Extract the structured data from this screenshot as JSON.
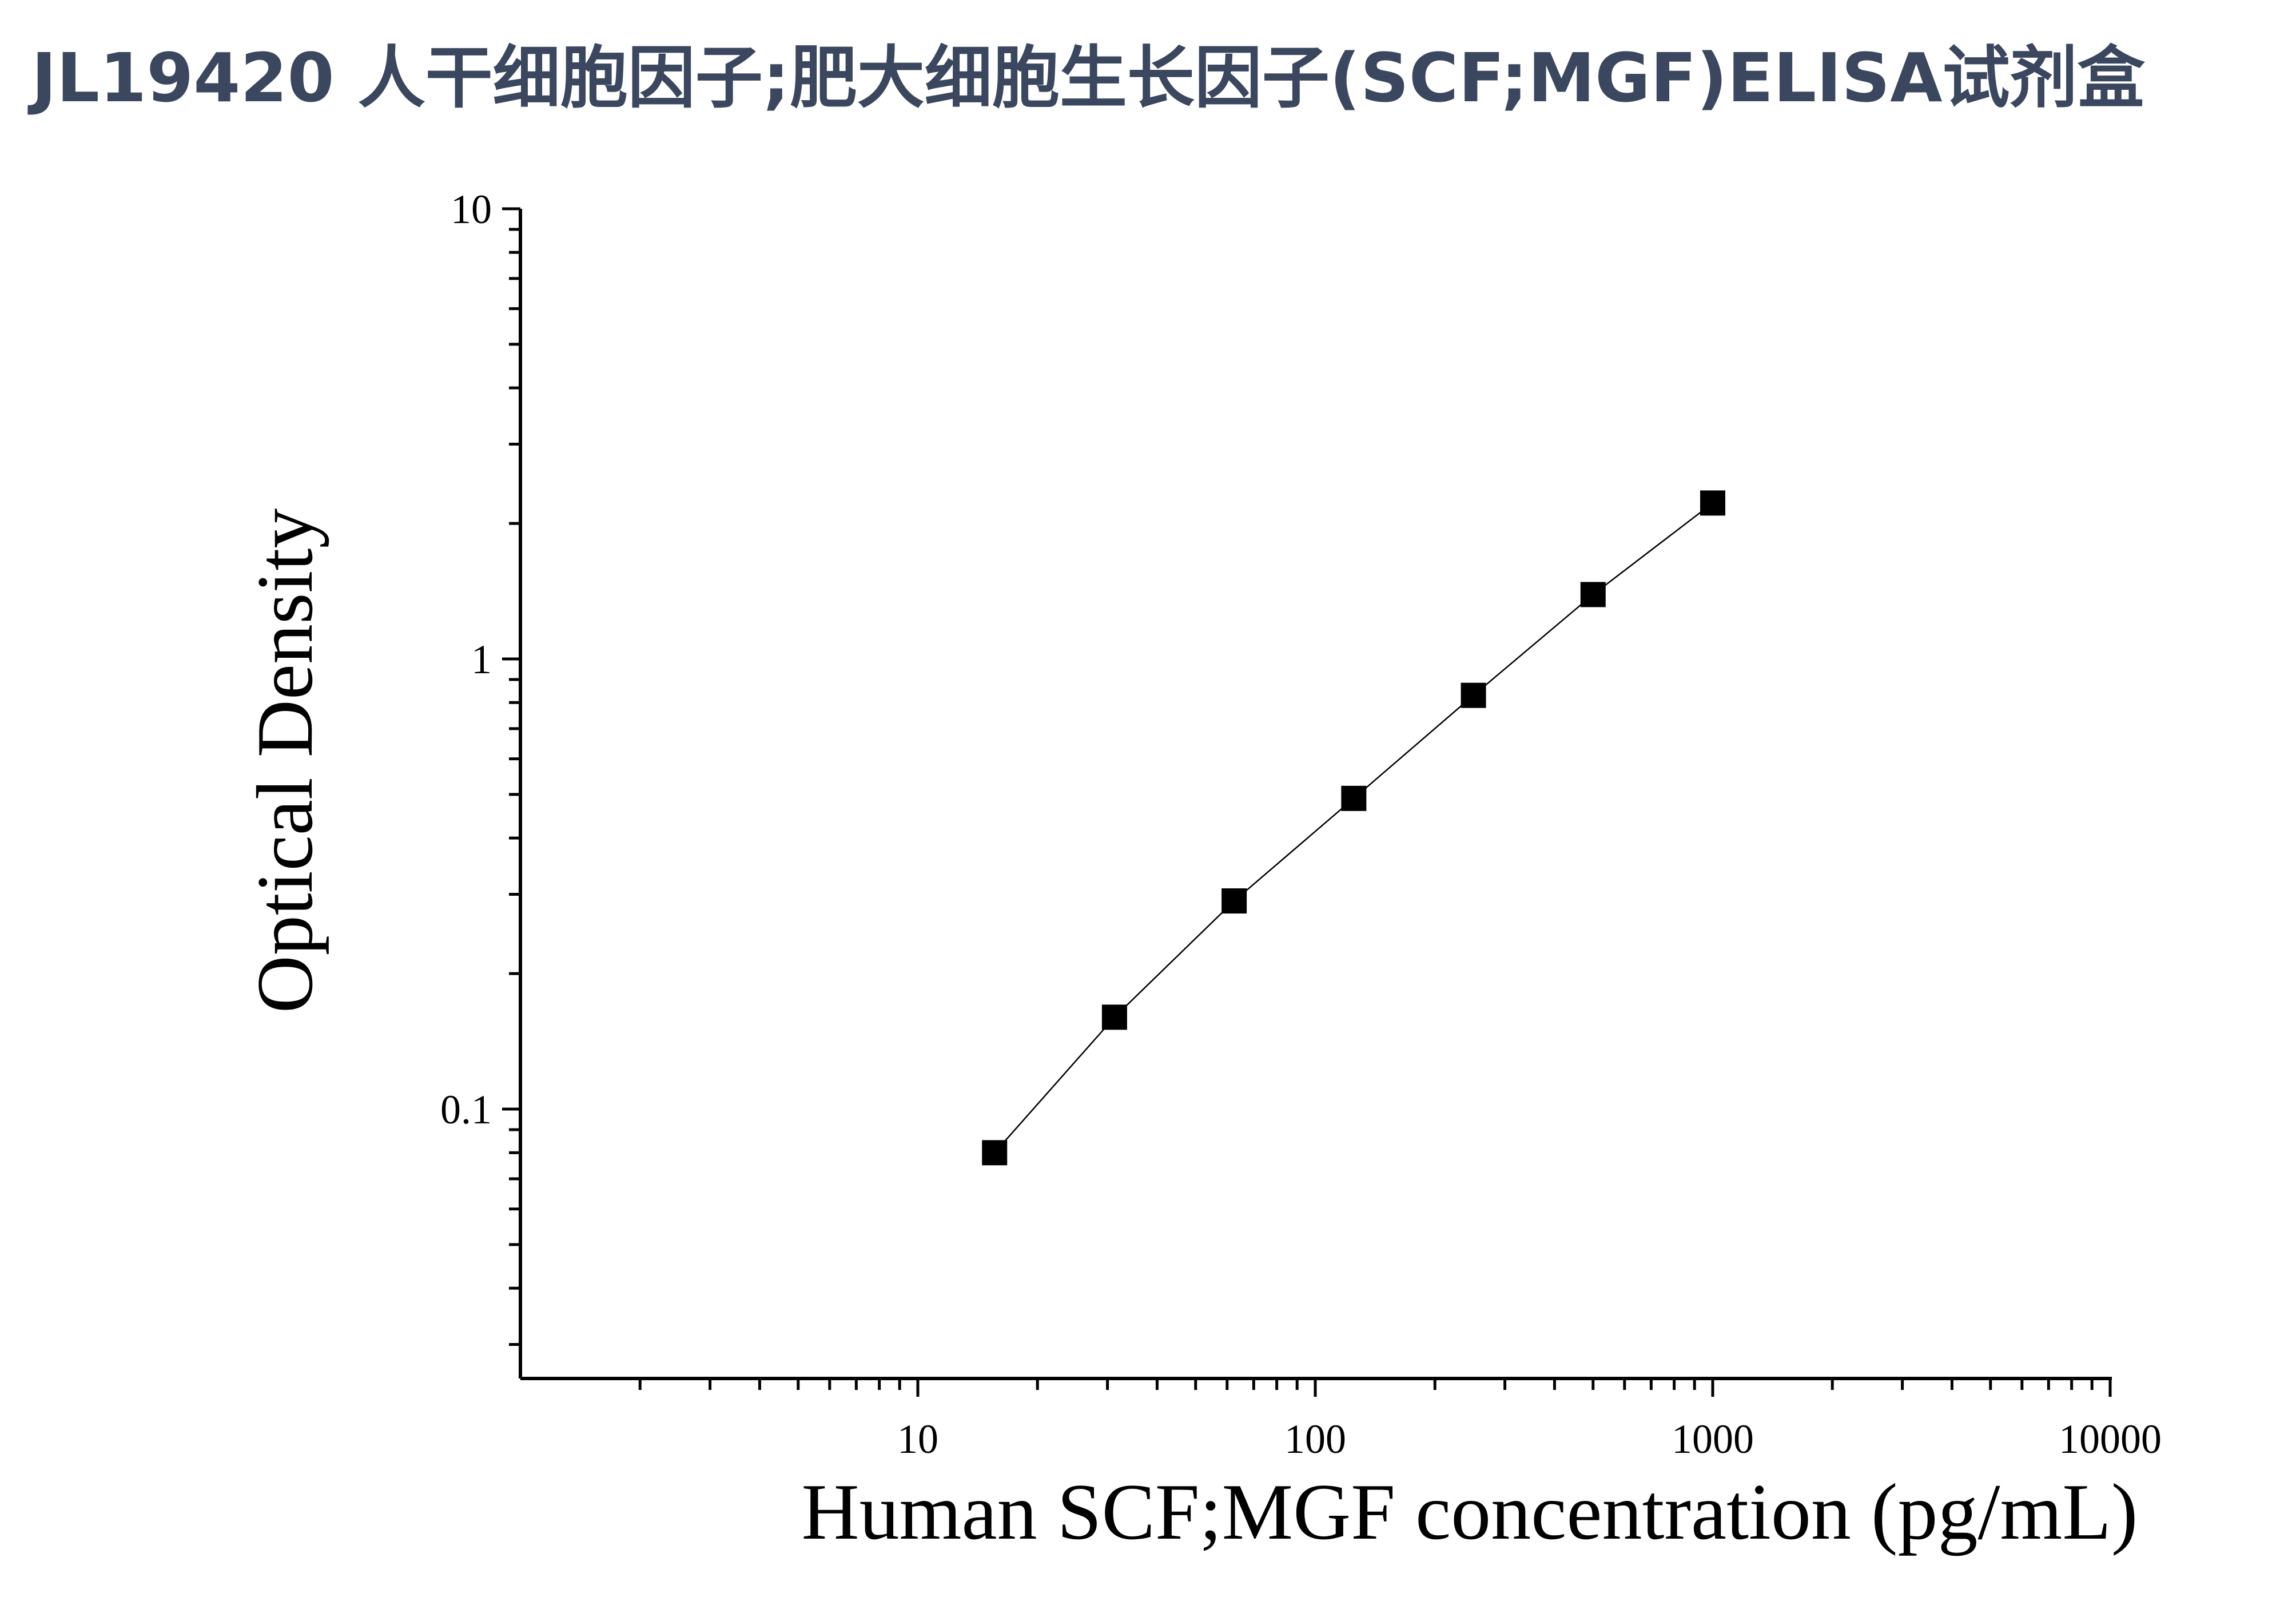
{
  "title": "JL19420 人干细胞因子;肥大细胞生长因子(SCF;MGF)ELISA试剂盒",
  "chart_data": {
    "type": "scatter",
    "xlabel": "Human SCF;MGF concentration (pg/mL)",
    "ylabel": "Optical Density",
    "x_scale": "log",
    "y_scale": "log",
    "xlim": [
      1,
      10000
    ],
    "ylim": [
      0.025,
      10
    ],
    "x_ticks": [
      "10",
      "100",
      "1000",
      "10000"
    ],
    "y_ticks": [
      "0.1",
      "1",
      "10"
    ],
    "series": [
      {
        "marker": "square",
        "color": "#000000",
        "line": true,
        "x": [
          15.6,
          31.25,
          62.5,
          125,
          250,
          500,
          1000
        ],
        "y": [
          0.08,
          0.16,
          0.29,
          0.49,
          0.83,
          1.39,
          2.22
        ]
      }
    ]
  }
}
